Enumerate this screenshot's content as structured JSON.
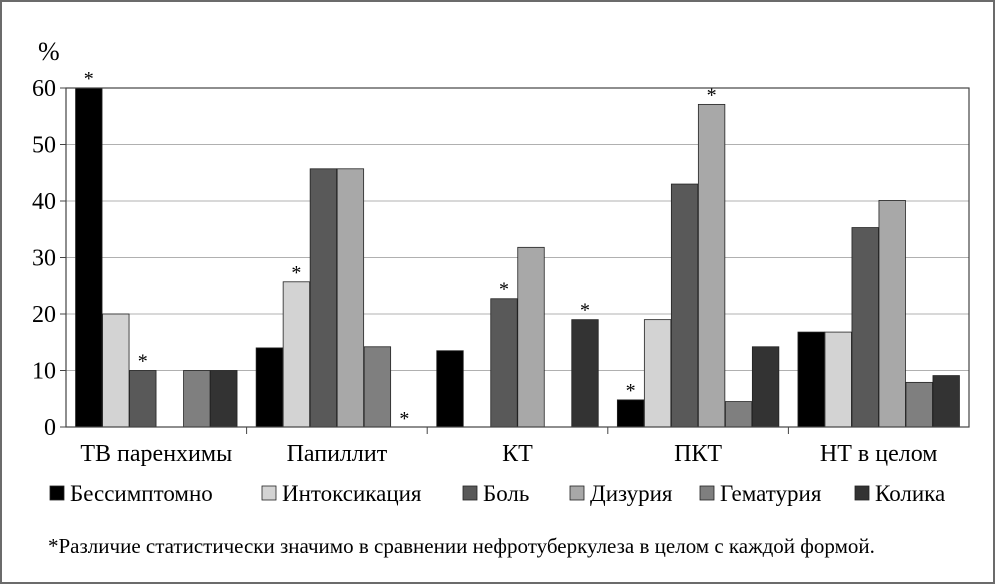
{
  "chart_data": {
    "type": "bar",
    "ylabel": "%",
    "ylim": [
      0,
      60
    ],
    "yticks": [
      0,
      10,
      20,
      30,
      40,
      50,
      60
    ],
    "grid": true,
    "legend_position": "bottom",
    "categories": [
      "ТВ паренхимы",
      "Папиллит",
      "КТ",
      "ПКТ",
      "НТ в целом"
    ],
    "series": [
      {
        "name": "Бессимптомно",
        "color": "#000000",
        "values": [
          60,
          14,
          13.5,
          4.8,
          16.8
        ]
      },
      {
        "name": "Интоксикация",
        "color": "#d3d3d3",
        "values": [
          20,
          25.7,
          0,
          19,
          16.8
        ]
      },
      {
        "name": "Боль",
        "color": "#595959",
        "values": [
          10,
          45.7,
          22.7,
          43,
          35.3
        ]
      },
      {
        "name": "Дизурия",
        "color": "#a8a8a8",
        "values": [
          0,
          45.7,
          31.8,
          57.1,
          40.1
        ]
      },
      {
        "name": "Гематурия",
        "color": "#7f7f7f",
        "values": [
          10,
          14.2,
          0,
          4.5,
          7.9
        ]
      },
      {
        "name": "Колика",
        "color": "#333333",
        "values": [
          10,
          0,
          19,
          14.2,
          9.1
        ]
      }
    ],
    "significance": [
      {
        "category": 0,
        "series": 0,
        "label": "*"
      },
      {
        "category": 0,
        "series": 2,
        "label": "*"
      },
      {
        "category": 1,
        "series": 1,
        "label": "*"
      },
      {
        "category": 1,
        "series": 5,
        "label": "*"
      },
      {
        "category": 2,
        "series": 2,
        "label": "*"
      },
      {
        "category": 2,
        "series": 5,
        "label": "*"
      },
      {
        "category": 3,
        "series": 0,
        "label": "*"
      },
      {
        "category": 3,
        "series": 3,
        "label": "*"
      }
    ]
  },
  "footnote": "*Различие статистически значимо в сравнении нефротуберкулеза в целом с каждой формой."
}
